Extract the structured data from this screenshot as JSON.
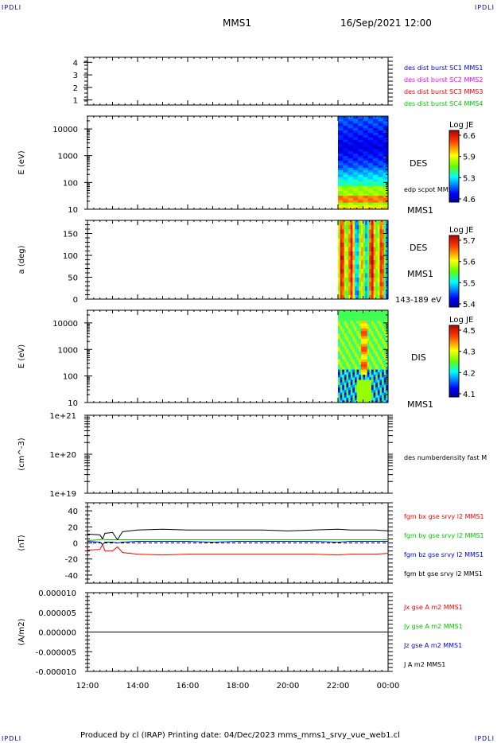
{
  "corner_label": "IPDLI",
  "header": {
    "spacecraft": "MMS1",
    "date": "16/Sep/2021 12:00"
  },
  "footer": {
    "text": "Produced by cl (IRAP)   Printing date: 04/Dec/2023   mms_mms1_srvy_vue_web1.cl"
  },
  "chart_data": [
    {
      "type": "line",
      "panel": "burst-availability",
      "yticks": [
        "1",
        "2",
        "3",
        "4"
      ],
      "ylim": [
        0.6,
        4.4
      ],
      "legend": [
        {
          "text": "des dist burst SC1 MMS1",
          "color": "#0000ff"
        },
        {
          "text": "des dist burst SC2 MMS2",
          "color": "#ff00ff"
        },
        {
          "text": "des dist burst SC3 MMS3",
          "color": "#ff0000"
        },
        {
          "text": "des dist burst SC4 MMS4",
          "color": "#00c800"
        }
      ]
    },
    {
      "type": "heatmap",
      "panel": "electron-energy-spectrogram",
      "ylabel": "E (eV)",
      "yscale": "log",
      "ylim": [
        10,
        30000
      ],
      "yticks": [
        "10",
        "100",
        "1000",
        "10000"
      ],
      "side_label": "DES",
      "overlay_label": "edp scpot MMS1",
      "probe": "MMS1",
      "colorbar": {
        "title": "Log JE",
        "ticks": [
          "6.6",
          "5.9",
          "5.3",
          "4.6"
        ],
        "range": [
          4.6,
          6.6
        ]
      },
      "x_start_hours": 22.0,
      "x_end_hours": 24.0
    },
    {
      "type": "heatmap",
      "panel": "electron-pitch-angle",
      "ylabel": "a (deg)",
      "ylim": [
        0,
        180
      ],
      "yticks": [
        "0",
        "50",
        "100",
        "150"
      ],
      "side_label": "DES",
      "probe": "MMS1",
      "energy_range": "143-189 eV",
      "colorbar": {
        "title": "Log JE",
        "ticks": [
          "5.7",
          "5.6",
          "5.5",
          "5.4"
        ],
        "range": [
          5.4,
          5.7
        ]
      },
      "x_start_hours": 22.0,
      "x_end_hours": 24.0
    },
    {
      "type": "heatmap",
      "panel": "ion-energy-spectrogram",
      "ylabel": "E (eV)",
      "yscale": "log",
      "ylim": [
        10,
        30000
      ],
      "yticks": [
        "10",
        "100",
        "1000",
        "10000"
      ],
      "side_label": "DIS",
      "probe": "MMS1",
      "colorbar": {
        "title": "Log JE",
        "ticks": [
          "4.5",
          "4.3",
          "4.2",
          "4.1"
        ],
        "range": [
          4.1,
          4.5
        ]
      },
      "x_start_hours": 22.0,
      "x_end_hours": 24.0
    },
    {
      "type": "line",
      "panel": "number-density",
      "ylabel": "(cm^-3)",
      "yscale": "log",
      "yticks": [
        "1e+19",
        "1e+20",
        "1e+21"
      ],
      "legend": [
        {
          "text": "des numberdensity fast M",
          "color": "#000000"
        }
      ]
    },
    {
      "type": "line",
      "panel": "magnetic-field",
      "ylabel": "(nT)",
      "ylim": [
        -50,
        50
      ],
      "yticks": [
        "-40",
        "-20",
        "0",
        "20",
        "40"
      ],
      "x": [
        12.0,
        12.5,
        12.6,
        12.7,
        13.0,
        13.2,
        13.4,
        14.0,
        15.0,
        16.0,
        17.0,
        18.0,
        19.0,
        20.0,
        21.0,
        22.0,
        22.5,
        23.0,
        23.5,
        24.0
      ],
      "series": [
        {
          "name": "fgm bx gse srvy l2 MMS1",
          "color": "#ff0000",
          "values": [
            -9,
            -8,
            -2,
            -10,
            -10,
            -5,
            -12,
            -14,
            -15,
            -14,
            -14,
            -14,
            -14,
            -14,
            -14,
            -15,
            -14,
            -14,
            -14,
            -13
          ]
        },
        {
          "name": "fgm by gse srvy l2 MMS1",
          "color": "#00c800",
          "values": [
            3,
            4,
            5,
            4,
            4,
            4,
            4,
            4,
            4,
            4,
            4,
            4,
            4,
            4,
            4,
            4,
            4,
            4,
            4,
            4
          ]
        },
        {
          "name": "fgm bz gse srvy l2 MMS1",
          "color": "#0000ff",
          "values": [
            2,
            1,
            -2,
            1,
            1,
            0,
            1,
            2,
            2,
            2,
            1,
            2,
            2,
            2,
            2,
            1,
            2,
            2,
            2,
            2
          ]
        },
        {
          "name": "fgm bt gse srvy l2 MMS1",
          "color": "#000000",
          "values": [
            11,
            10,
            5,
            12,
            13,
            4,
            14,
            16,
            17,
            16,
            16,
            16,
            16,
            15,
            16,
            17,
            16,
            16,
            16,
            15
          ]
        }
      ]
    },
    {
      "type": "line",
      "panel": "current-density",
      "ylabel": "(A/m2)",
      "ylim": [
        -1e-05,
        1e-05
      ],
      "yticks": [
        "-0.000010",
        "-0.000005",
        "0.000000",
        "0.000005",
        "0.000010"
      ],
      "series": [
        {
          "name": "Jx gse A m2 MMS1",
          "color": "#ff0000"
        },
        {
          "name": "Jy gse A m2 MMS1",
          "color": "#00c800"
        },
        {
          "name": "Jz gse A m2 MMS1",
          "color": "#0000ff"
        },
        {
          "name": "J A m2 MMS1",
          "color": "#000000"
        }
      ]
    }
  ],
  "x_axis": {
    "range_hours": [
      12,
      24
    ],
    "ticks": [
      {
        "hour": 12,
        "label": "12:00"
      },
      {
        "hour": 14,
        "label": "14:00"
      },
      {
        "hour": 16,
        "label": "16:00"
      },
      {
        "hour": 18,
        "label": "18:00"
      },
      {
        "hour": 20,
        "label": "20:00"
      },
      {
        "hour": 22,
        "label": "22:00"
      },
      {
        "hour": 24,
        "label": "00:00"
      }
    ]
  }
}
